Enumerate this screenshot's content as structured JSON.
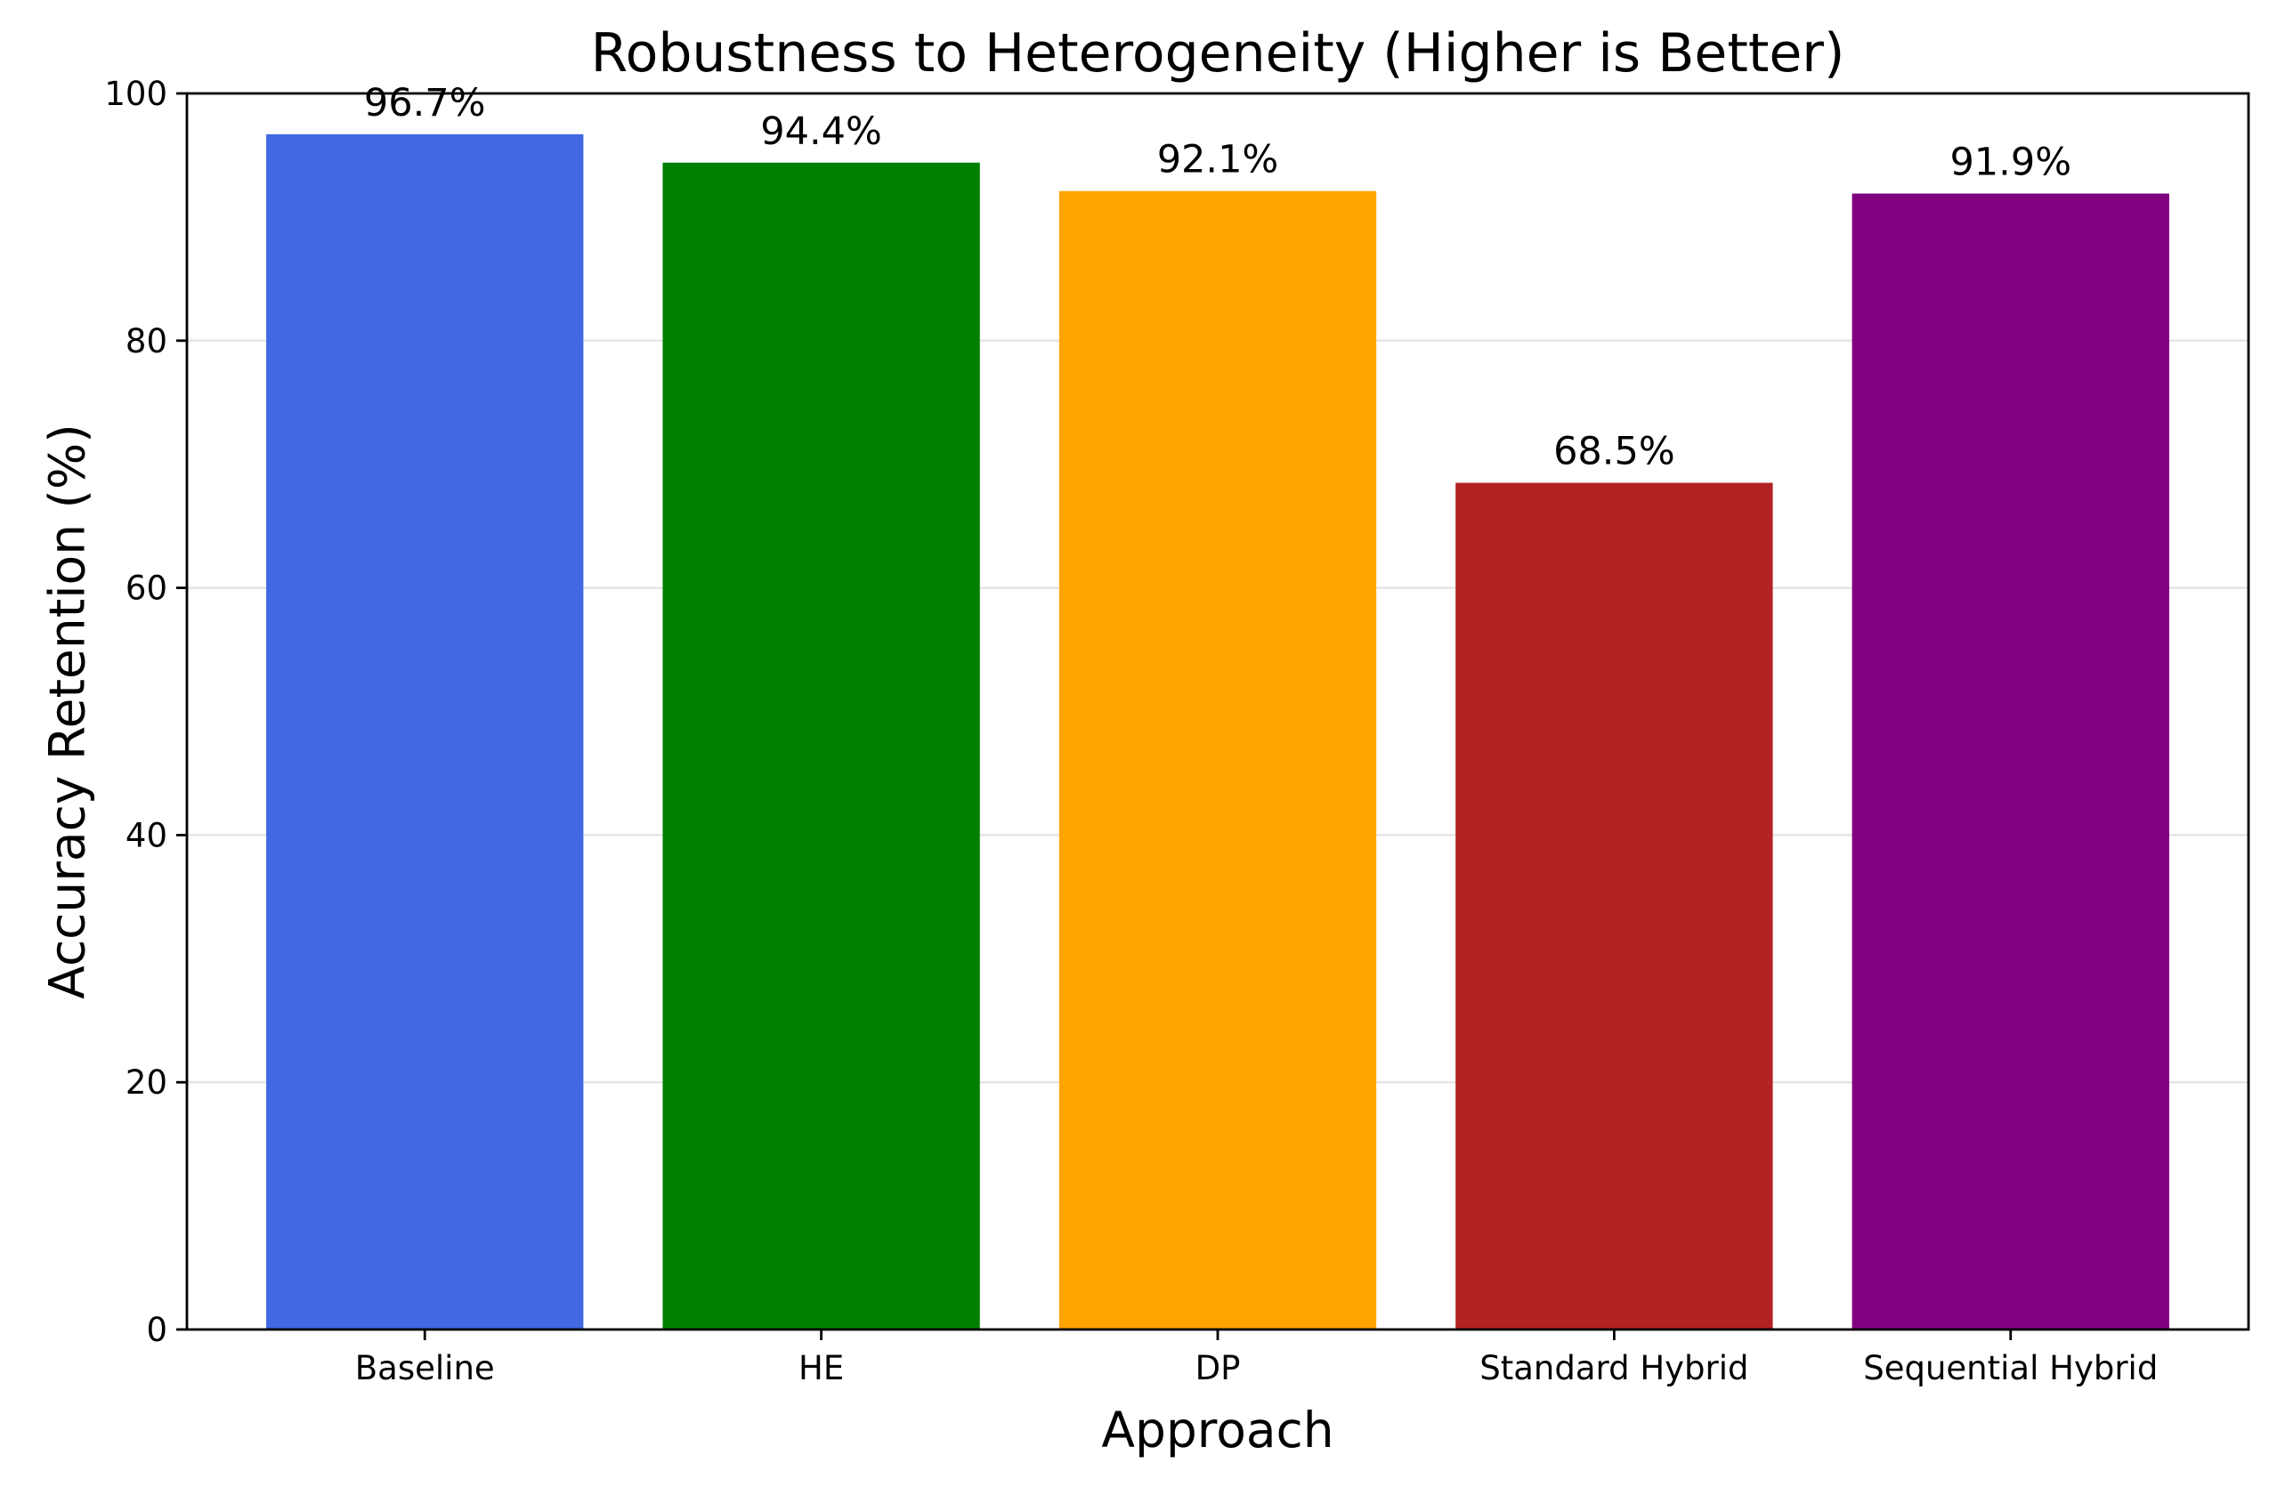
{
  "chart_data": {
    "type": "bar",
    "title": "Robustness to Heterogeneity (Higher is Better)",
    "xlabel": "Approach",
    "ylabel": "Accuracy Retention (%)",
    "categories": [
      "Baseline",
      "HE",
      "DP",
      "Standard Hybrid",
      "Sequential Hybrid"
    ],
    "values": [
      96.7,
      94.4,
      92.1,
      68.5,
      91.9
    ],
    "value_labels": [
      "96.7%",
      "94.4%",
      "92.1%",
      "68.5%",
      "91.9%"
    ],
    "colors": [
      "#4169e1",
      "#008000",
      "#ffa500",
      "#b22222",
      "#800080"
    ],
    "ylim": [
      0,
      100
    ],
    "yticks": [
      0,
      20,
      40,
      60,
      80,
      100
    ],
    "ytick_labels": [
      "0",
      "20",
      "40",
      "60",
      "80",
      "100"
    ],
    "grid": "y",
    "legend": "none"
  }
}
